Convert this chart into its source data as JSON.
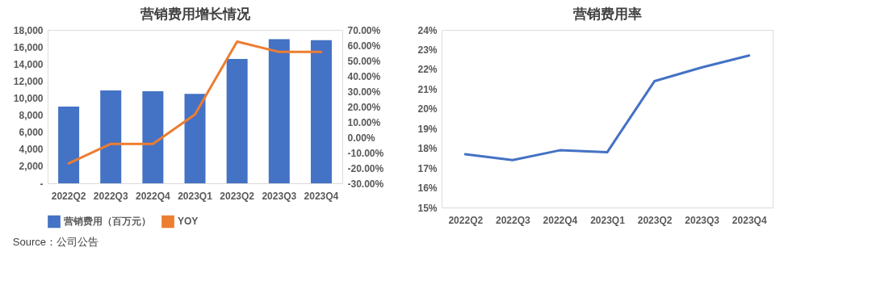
{
  "chart_data": [
    {
      "type": "bar",
      "title": "营销费用增长情况",
      "categories": [
        "2022Q2",
        "2022Q3",
        "2022Q4",
        "2023Q1",
        "2023Q2",
        "2023Q3",
        "2023Q4"
      ],
      "series": [
        {
          "name": "营销费用（百万元）",
          "color": "#4472c4",
          "type": "bar",
          "values": [
            9000,
            10900,
            10800,
            10500,
            14600,
            16900,
            16800
          ]
        },
        {
          "name": "YOY",
          "color": "#ed7d31",
          "type": "line",
          "axis": "y2",
          "values": [
            -17,
            -4.3,
            -4.3,
            14.9,
            62.4,
            55.6,
            55.6
          ]
        }
      ],
      "ylim": [
        0,
        18000
      ],
      "yticks": [
        {
          "value": 0,
          "label": "-"
        },
        {
          "value": 2000,
          "label": "2,000"
        },
        {
          "value": 4000,
          "label": "4,000"
        },
        {
          "value": 6000,
          "label": "6,000"
        },
        {
          "value": 8000,
          "label": "8,000"
        },
        {
          "value": 10000,
          "label": "10,000"
        },
        {
          "value": 12000,
          "label": "12,000"
        },
        {
          "value": 14000,
          "label": "14,000"
        },
        {
          "value": 16000,
          "label": "16,000"
        },
        {
          "value": 18000,
          "label": "18,000"
        }
      ],
      "y2lim": [
        -30,
        70
      ],
      "y2ticks": [
        {
          "value": -30,
          "label": "-30.00%"
        },
        {
          "value": -20,
          "label": "-20.00%"
        },
        {
          "value": -10,
          "label": "-10.00%"
        },
        {
          "value": 0,
          "label": "0.00%"
        },
        {
          "value": 10,
          "label": "10.00%"
        },
        {
          "value": 20,
          "label": "20.00%"
        },
        {
          "value": 30,
          "label": "30.00%"
        },
        {
          "value": 40,
          "label": "40.00%"
        },
        {
          "value": 50,
          "label": "50.00%"
        },
        {
          "value": 60,
          "label": "60.00%"
        },
        {
          "value": 70,
          "label": "70.00%"
        }
      ],
      "legend": "bottom",
      "annotations": [
        "Source：公司公告"
      ]
    },
    {
      "type": "line",
      "title": "营销费用率",
      "categories": [
        "2022Q2",
        "2022Q3",
        "2022Q4",
        "2023Q1",
        "2023Q2",
        "2023Q3",
        "2023Q4"
      ],
      "series": [
        {
          "color": "#4472c4",
          "values": [
            17.7,
            17.4,
            17.9,
            17.8,
            21.4,
            22.1,
            22.7
          ]
        }
      ],
      "ylim": [
        15,
        24
      ],
      "yticks": [
        {
          "value": 15,
          "label": "15%"
        },
        {
          "value": 16,
          "label": "16%"
        },
        {
          "value": 17,
          "label": "17%"
        },
        {
          "value": 18,
          "label": "18%"
        },
        {
          "value": 19,
          "label": "19%"
        },
        {
          "value": 20,
          "label": "20%"
        },
        {
          "value": 21,
          "label": "21%"
        },
        {
          "value": 22,
          "label": "22%"
        },
        {
          "value": 23,
          "label": "23%"
        },
        {
          "value": 24,
          "label": "24%"
        }
      ]
    }
  ]
}
